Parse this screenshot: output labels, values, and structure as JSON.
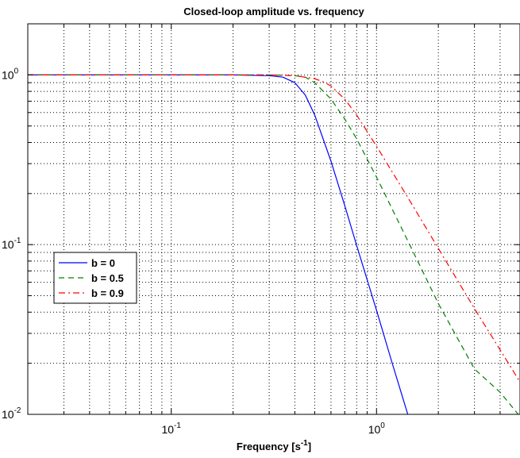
{
  "chart_data": {
    "type": "line",
    "title": "Closed-loop amplitude vs. frequency",
    "xlabel_main": "Frequency [s",
    "xlabel_sup": "-1",
    "xlabel_tail": "]",
    "ylabel": "",
    "x_scale": "log",
    "y_scale": "log",
    "xlim": [
      0.02,
      5
    ],
    "ylim": [
      0.01,
      2
    ],
    "grid": true,
    "legend_position": "middle-left",
    "x_ticks": [
      {
        "value": 0.1,
        "base": "10",
        "exp": "-1"
      },
      {
        "value": 1,
        "base": "10",
        "exp": "0"
      }
    ],
    "y_ticks": [
      {
        "value": 0.01,
        "base": "10",
        "exp": "-2"
      },
      {
        "value": 0.1,
        "base": "10",
        "exp": "-1"
      },
      {
        "value": 1,
        "base": "10",
        "exp": "0"
      }
    ],
    "series": [
      {
        "name": "b = 0",
        "color": "#0000ff",
        "dash": "",
        "x": [
          0.02,
          0.1,
          0.2,
          0.3,
          0.35,
          0.4,
          0.45,
          0.5,
          0.6,
          0.7,
          0.8,
          1.0,
          1.2,
          1.42
        ],
        "y": [
          1.0,
          1.0,
          1.0,
          0.99,
          0.97,
          0.9,
          0.76,
          0.58,
          0.31,
          0.17,
          0.099,
          0.041,
          0.0195,
          0.01
        ]
      },
      {
        "name": "b = 0.5",
        "color": "#008000",
        "dash": "7,5",
        "x": [
          0.02,
          0.1,
          0.3,
          0.4,
          0.45,
          0.5,
          0.6,
          0.7,
          0.8,
          1.0,
          1.5,
          2.0,
          3.0,
          4.0,
          4.9
        ],
        "y": [
          1.0,
          1.0,
          1.0,
          0.99,
          0.97,
          0.9,
          0.72,
          0.55,
          0.42,
          0.25,
          0.092,
          0.045,
          0.0185,
          0.0135,
          0.01
        ]
      },
      {
        "name": "b = 0.9",
        "color": "#ff0000",
        "dash": "8,4,2,4",
        "x": [
          0.02,
          0.1,
          0.3,
          0.4,
          0.5,
          0.55,
          0.6,
          0.7,
          0.8,
          1.0,
          1.5,
          2.0,
          3.0,
          4.0,
          5.0
        ],
        "y": [
          1.0,
          1.0,
          1.0,
          0.99,
          0.95,
          0.91,
          0.86,
          0.72,
          0.58,
          0.38,
          0.17,
          0.095,
          0.042,
          0.024,
          0.0155
        ]
      }
    ]
  }
}
